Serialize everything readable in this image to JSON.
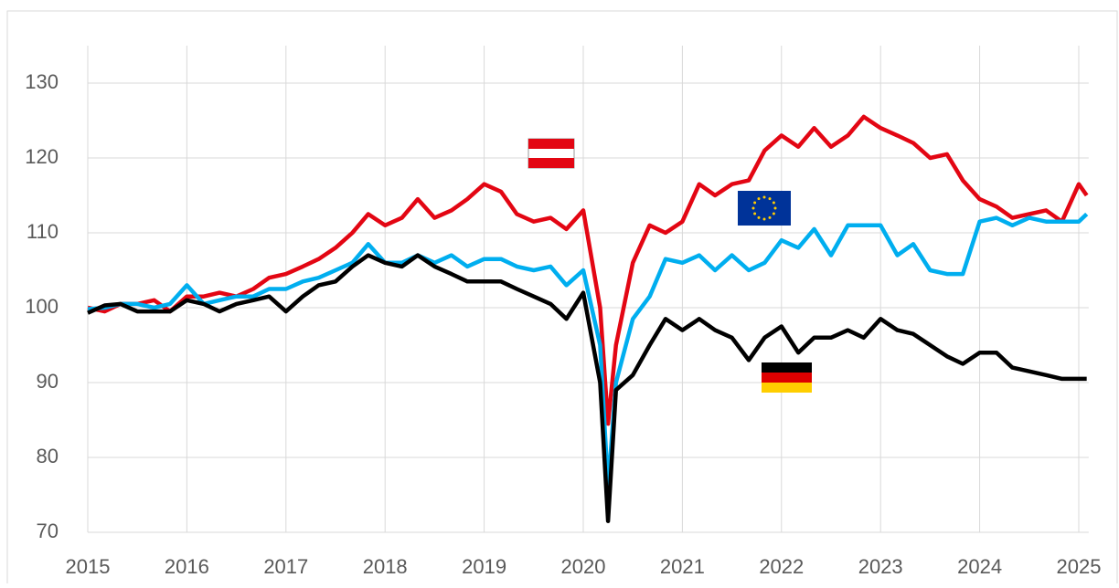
{
  "chart_data": {
    "type": "line",
    "x": [
      2015,
      2015.17,
      2015.33,
      2015.5,
      2015.67,
      2015.83,
      2016,
      2016.17,
      2016.33,
      2016.5,
      2016.67,
      2016.83,
      2017,
      2017.17,
      2017.33,
      2017.5,
      2017.67,
      2017.83,
      2018,
      2018.17,
      2018.33,
      2018.5,
      2018.67,
      2018.83,
      2019,
      2019.17,
      2019.33,
      2019.5,
      2019.67,
      2019.83,
      2020,
      2020.17,
      2020.25,
      2020.33,
      2020.5,
      2020.67,
      2020.83,
      2021,
      2021.17,
      2021.33,
      2021.5,
      2021.67,
      2021.83,
      2022,
      2022.17,
      2022.33,
      2022.5,
      2022.67,
      2022.83,
      2023,
      2023.17,
      2023.33,
      2023.5,
      2023.67,
      2023.83,
      2024,
      2024.17,
      2024.33,
      2024.5,
      2024.67,
      2024.83,
      2025,
      2025.08
    ],
    "series": [
      {
        "color": "#e30613",
        "values": [
          100,
          99.5,
          100.5,
          100.5,
          101,
          99.5,
          101.5,
          101.5,
          102,
          101.5,
          102.5,
          104,
          104.5,
          105.5,
          106.5,
          108,
          110,
          112.5,
          111,
          112,
          114.5,
          112,
          113,
          114.5,
          116.5,
          115.5,
          112.5,
          111.5,
          112,
          110.5,
          113,
          100,
          84.5,
          95,
          106,
          111,
          110,
          111.5,
          116.5,
          115,
          116.5,
          117,
          121,
          123,
          121.5,
          124,
          121.5,
          123,
          125.5,
          124,
          123,
          122,
          120,
          120.5,
          117,
          114.5,
          113.5,
          112,
          112.5,
          113,
          111.5,
          116.5,
          115
        ]
      },
      {
        "color": "#00aeef",
        "values": [
          99.8,
          100,
          100.5,
          100.5,
          100,
          100.5,
          103,
          100.5,
          101,
          101.5,
          101.5,
          102.5,
          102.5,
          103.5,
          104,
          105,
          106,
          108.5,
          106,
          106,
          107,
          106,
          107,
          105.5,
          106.5,
          106.5,
          105.5,
          105,
          105.5,
          103,
          105,
          95,
          76,
          90,
          98.5,
          101.5,
          106.5,
          106,
          107,
          105,
          107,
          105,
          106,
          109,
          108,
          110.5,
          107,
          111,
          111,
          111,
          107,
          108.5,
          105,
          104.5,
          104.5,
          111.5,
          112,
          111,
          112,
          111.5,
          111.5,
          111.5,
          112.5
        ]
      },
      {
        "color": "#000000",
        "values": [
          99.3,
          100.3,
          100.5,
          99.5,
          99.5,
          99.5,
          101,
          100.5,
          99.5,
          100.5,
          101,
          101.5,
          99.5,
          101.5,
          103,
          103.5,
          105.5,
          107,
          106,
          105.5,
          107,
          105.5,
          104.5,
          103.5,
          103.5,
          103.5,
          102.5,
          101.5,
          100.5,
          98.5,
          102,
          90,
          71.5,
          89,
          91,
          95,
          98.5,
          97,
          98.5,
          97,
          96,
          93,
          96,
          97.5,
          94,
          96,
          96,
          97,
          96,
          98.5,
          97,
          96.5,
          95,
          93.5,
          92.5,
          94,
          94,
          92,
          91.5,
          91,
          90.5,
          90.5,
          90.5
        ]
      }
    ],
    "xlim": [
      2015,
      2025.1
    ],
    "xticks": [
      2015,
      2016,
      2017,
      2018,
      2019,
      2020,
      2021,
      2022,
      2023,
      2024,
      2025
    ],
    "ylim": [
      70,
      135
    ],
    "yticks": [
      70,
      80,
      90,
      100,
      110,
      120,
      130
    ],
    "grid": true
  }
}
